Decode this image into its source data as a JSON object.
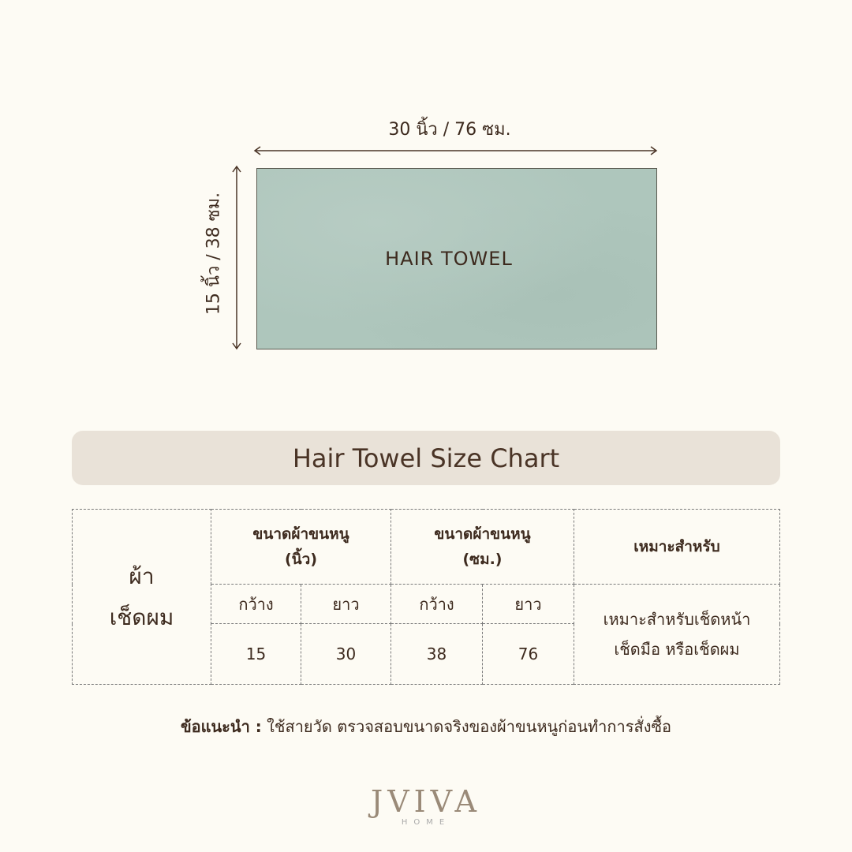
{
  "diagram": {
    "width_label": "30 นิ้ว / 76 ซม.",
    "height_label": "15 นิ้ว / 38 ซม.",
    "towel_label": "HAIR TOWEL",
    "towel_color": "#aec6bc"
  },
  "title": "Hair Towel Size Chart",
  "table": {
    "product": "ผ้า\nเช็ดผม",
    "header_inch": "ขนาดผ้าขนหนู\n(นิ้ว)",
    "header_cm": "ขนาดผ้าขนหนู\n(ซม.)",
    "header_use": "เหมาะสำหรับ",
    "width_label": "กว้าง",
    "length_label": "ยาว",
    "inch_width": "15",
    "inch_length": "30",
    "cm_width": "38",
    "cm_length": "76",
    "use": "เหมาะสำหรับเช็ดหน้า\nเช็ดมือ หรือเช็ดผม"
  },
  "note": {
    "label": "ข้อแนะนำ :",
    "text": " ใช้สายวัด ตรวจสอบขนาดจริงของผ้าขนหนูก่อนทำการสั่งซื้อ"
  },
  "logo": {
    "brand": "JVIVA",
    "sub": "HOME"
  }
}
